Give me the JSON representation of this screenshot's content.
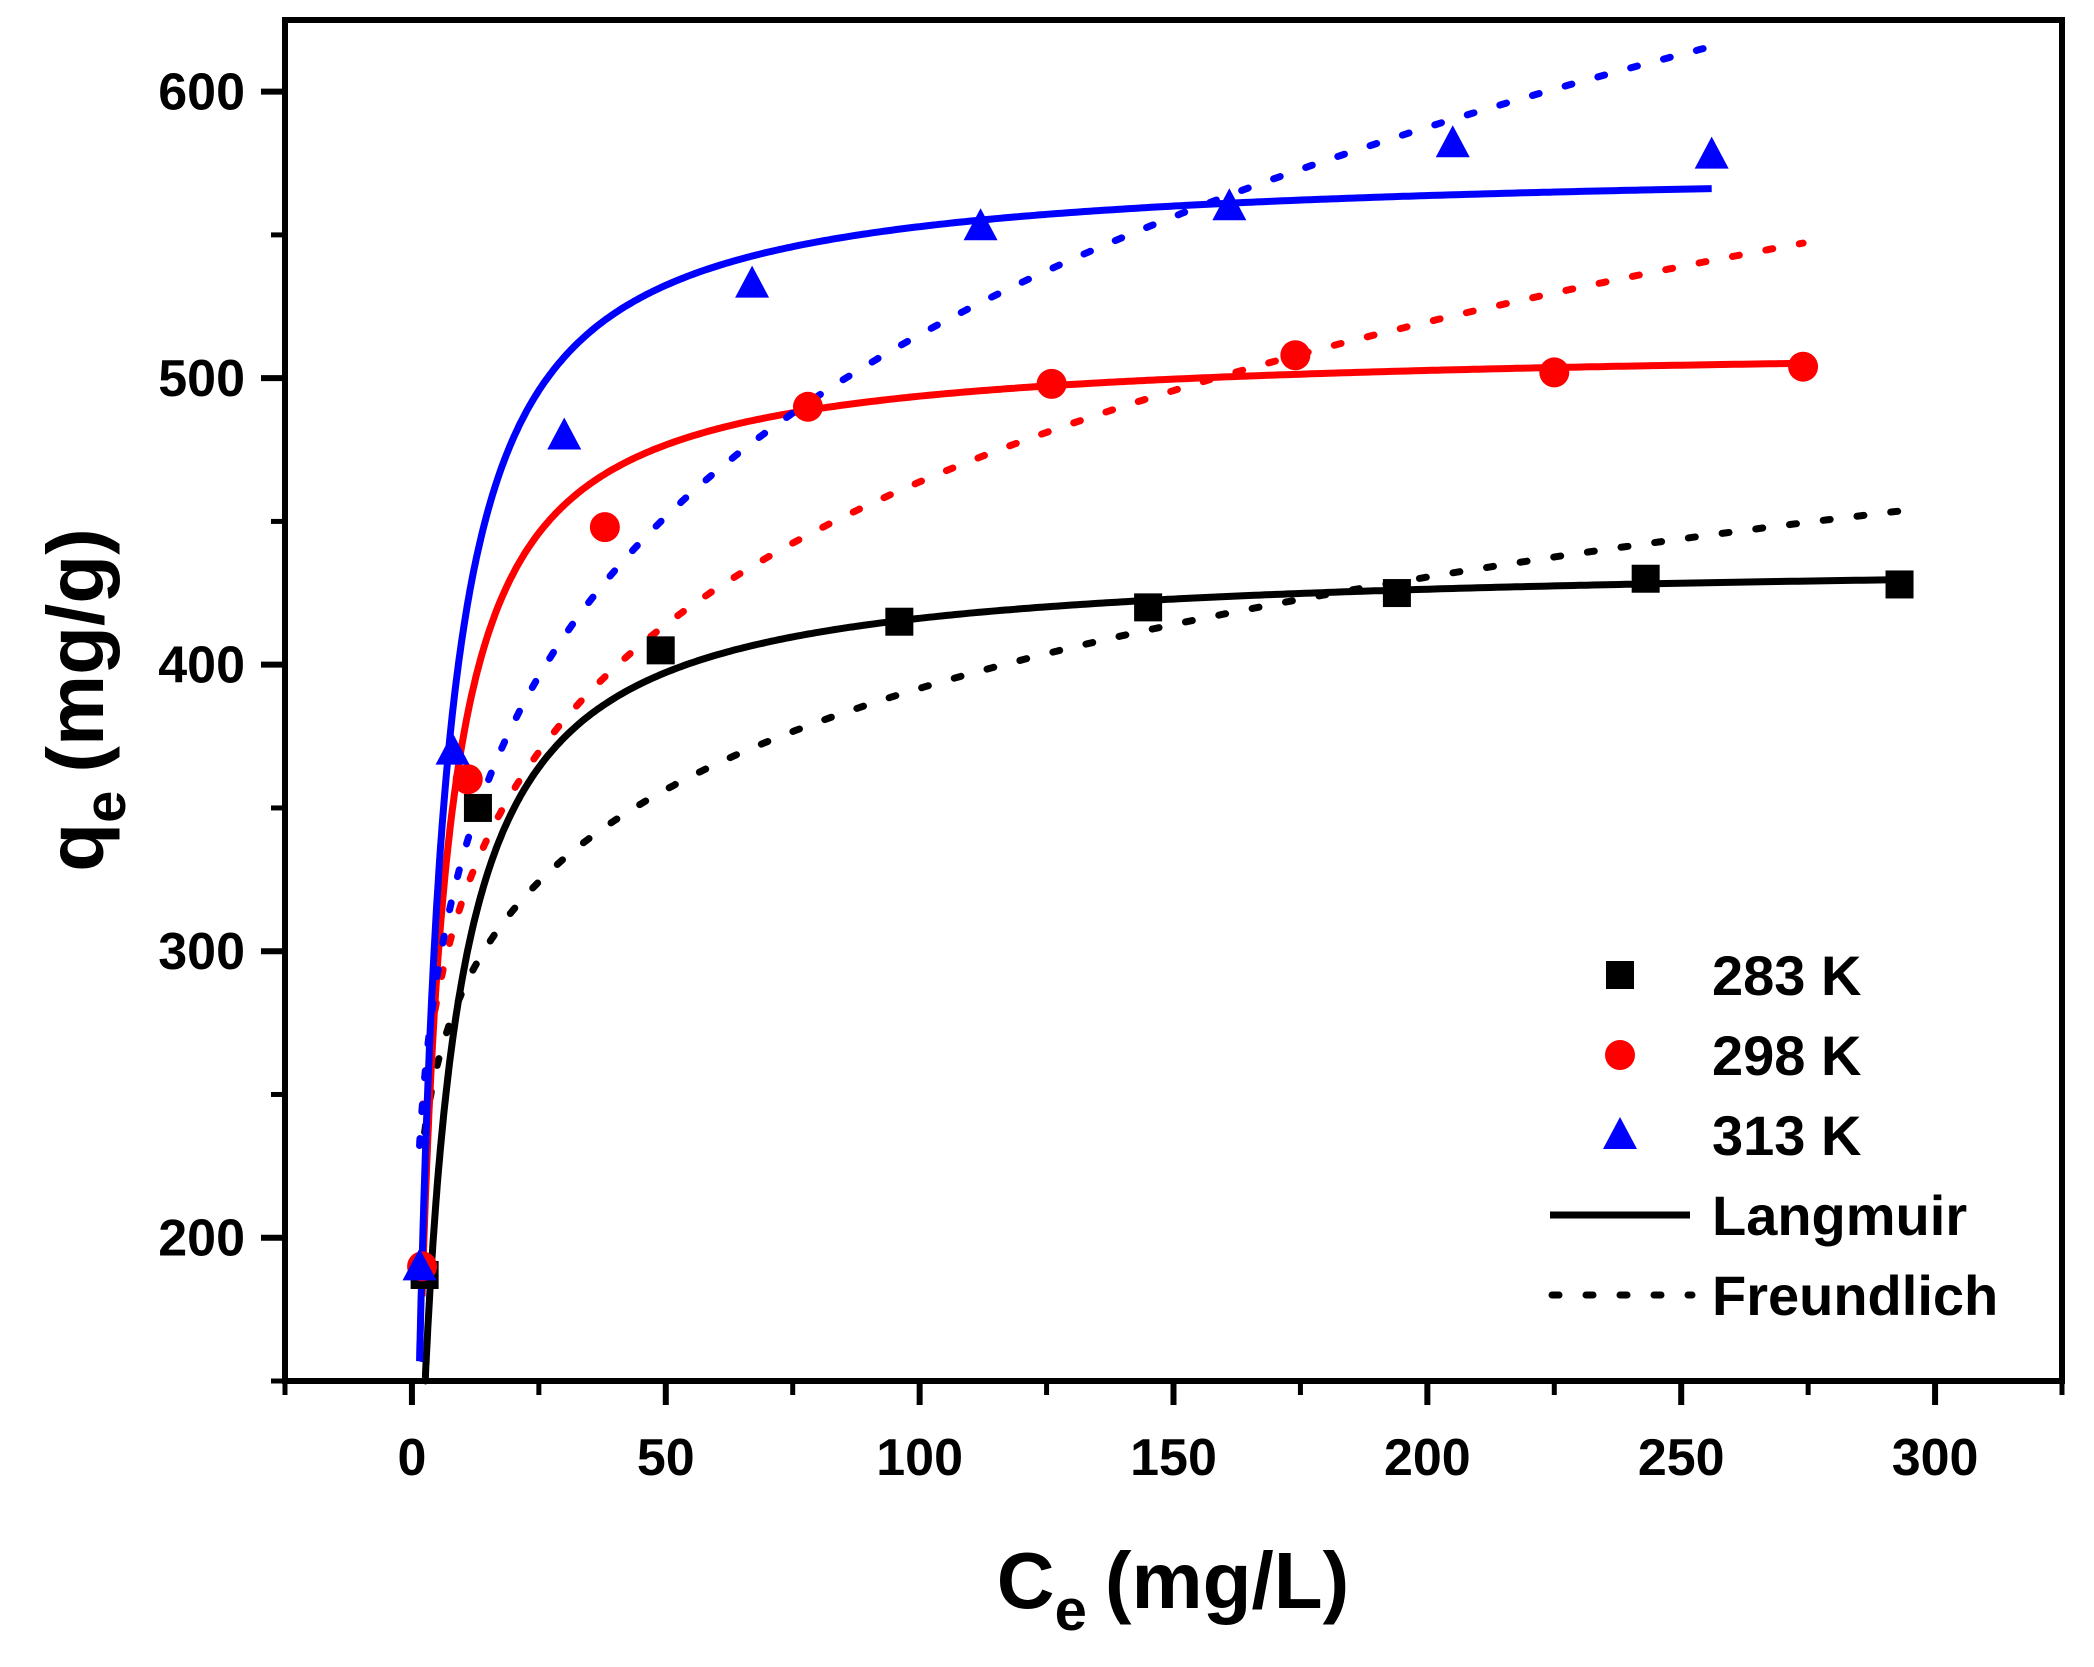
{
  "chart_data": {
    "type": "scatter",
    "xlabel": {
      "main": "C",
      "sub": "e",
      "unit": "(mg/L)"
    },
    "ylabel": {
      "main": "q",
      "sub": "e",
      "unit": "(mg/g)"
    },
    "xlim": [
      -25,
      325
    ],
    "ylim": [
      150,
      625
    ],
    "xticks": [
      0,
      50,
      100,
      150,
      200,
      250,
      300
    ],
    "xtick_labels": [
      "0",
      "50",
      "100",
      "150",
      "200",
      "250",
      "300"
    ],
    "yticks": [
      200,
      300,
      400,
      500,
      600
    ],
    "ytick_labels": [
      "200",
      "300",
      "400",
      "500",
      "600"
    ],
    "grid": false,
    "legend_position": "bottom-right",
    "series": [
      {
        "name": "283 K",
        "marker": "square",
        "color": "#000000",
        "points": [
          [
            2.5,
            187
          ],
          [
            13,
            350
          ],
          [
            49,
            405
          ],
          [
            96,
            415
          ],
          [
            145,
            420
          ],
          [
            194,
            425
          ],
          [
            243,
            430
          ],
          [
            293,
            428
          ]
        ],
        "langmuir": {
          "qmax": 437,
          "KL": 0.2,
          "xrange": [
            2.5,
            293
          ]
        },
        "freundlich": {
          "KF": 209,
          "n": 7.33,
          "xrange": [
            2.5,
            293
          ]
        }
      },
      {
        "name": "298 K",
        "marker": "circle",
        "color": "#ff0000",
        "points": [
          [
            2,
            190
          ],
          [
            11,
            360
          ],
          [
            38,
            448
          ],
          [
            78,
            490
          ],
          [
            126,
            498
          ],
          [
            174,
            508
          ],
          [
            225,
            502
          ],
          [
            274,
            504
          ]
        ],
        "langmuir": {
          "qmax": 512,
          "KL": 0.27,
          "xrange": [
            2,
            274
          ]
        },
        "freundlich": {
          "KF": 218,
          "n": 6.1,
          "xrange": [
            2,
            274
          ]
        }
      },
      {
        "name": "313 K",
        "marker": "triangle",
        "color": "#0000ff",
        "points": [
          [
            1.5,
            190
          ],
          [
            8,
            370
          ],
          [
            30,
            480
          ],
          [
            67,
            533
          ],
          [
            112,
            553
          ],
          [
            161,
            560
          ],
          [
            205,
            582
          ],
          [
            256,
            578
          ]
        ],
        "langmuir": {
          "qmax": 575,
          "KL": 0.25,
          "xrange": [
            1.5,
            256
          ]
        },
        "freundlich": {
          "KF": 215,
          "n": 5.27,
          "xrange": [
            1.5,
            256
          ]
        }
      }
    ],
    "legend": [
      {
        "label": "283 K",
        "kind": "square",
        "color": "#000000"
      },
      {
        "label": "298 K",
        "kind": "circle",
        "color": "#ff0000"
      },
      {
        "label": "313 K",
        "kind": "triangle",
        "color": "#0000ff"
      },
      {
        "label": "Langmuir",
        "kind": "solid-line",
        "color": "#000000"
      },
      {
        "label": "Freundlich",
        "kind": "dotted-line",
        "color": "#000000"
      }
    ]
  }
}
